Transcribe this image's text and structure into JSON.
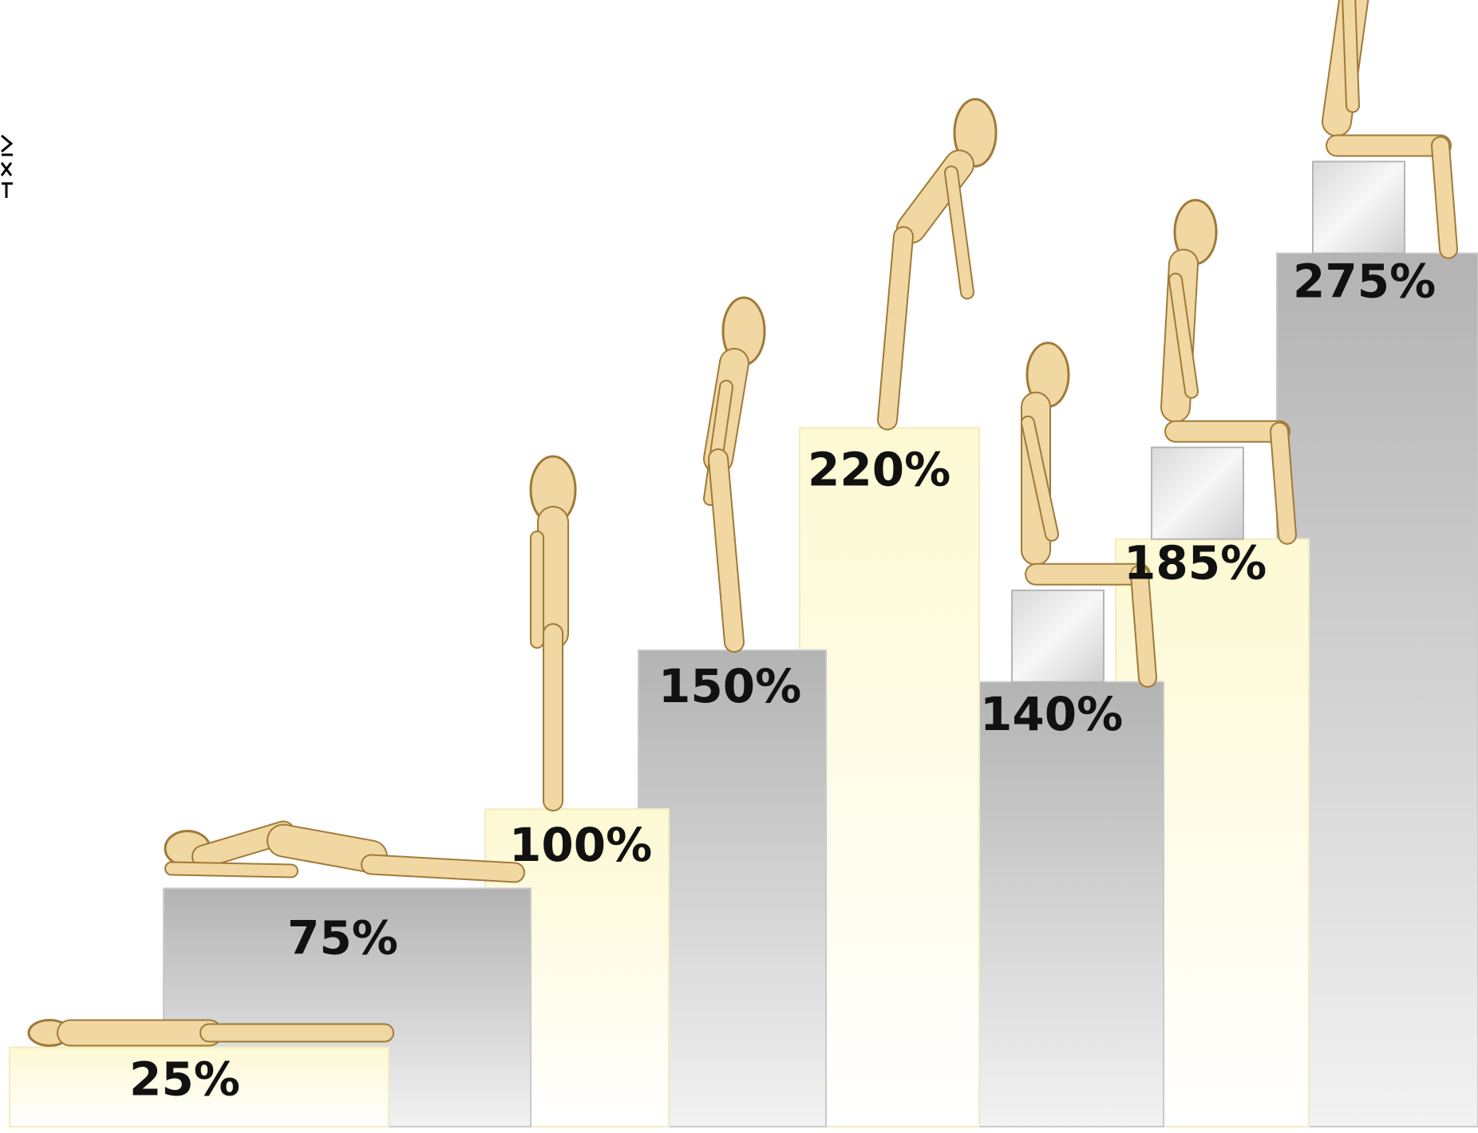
{
  "chart_data": {
    "type": "bar",
    "title": "",
    "xlabel": "",
    "ylabel": "",
    "ylim": [
      0,
      275
    ],
    "grid": false,
    "legend": "none",
    "categories": [
      "",
      "",
      "",
      "",
      "",
      "",
      "",
      ""
    ],
    "values": [
      25,
      75,
      100,
      150,
      220,
      140,
      185,
      275
    ],
    "labels": [
      "25%",
      "75%",
      "100%",
      "150%",
      "220%",
      "140%",
      "185%",
      "275%"
    ],
    "figures": [
      {
        "pose": "lying",
        "stool": false
      },
      {
        "pose": "lying-raised",
        "stool": false
      },
      {
        "pose": "standing",
        "stool": false
      },
      {
        "pose": "leaning-forward",
        "stool": false
      },
      {
        "pose": "bent-forward",
        "stool": false
      },
      {
        "pose": "sitting-upright",
        "stool": true
      },
      {
        "pose": "sitting-forward",
        "stool": true
      },
      {
        "pose": "sitting-slumped",
        "stool": true
      }
    ],
    "bar_colors": [
      "light-yellow",
      "gray",
      "light-yellow",
      "gray",
      "light-yellow",
      "gray",
      "light-yellow",
      "gray"
    ],
    "colors": {
      "yellow_top": "#fdf9d3",
      "yellow_bottom": "#ffffff",
      "gray_top": "#b3b3b3",
      "gray_bottom": "#f2f2f2",
      "figure_fill": "#f1d7a1",
      "figure_stroke": "#a07a3a",
      "stool_fill": "#e4e4e4"
    }
  }
}
